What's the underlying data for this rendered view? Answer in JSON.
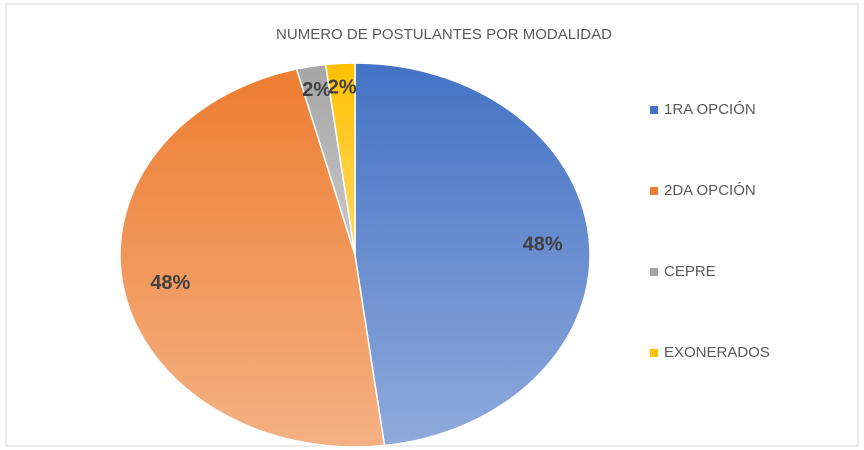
{
  "chart_data": {
    "type": "pie",
    "title": "NUMERO DE POSTULANTES POR MODALIDAD",
    "categories": [
      "1RA OPCIÓN",
      "2DA OPCIÓN",
      "CEPRE",
      "EXONERADOS"
    ],
    "values": [
      48,
      48,
      2,
      2
    ],
    "value_labels": [
      "48%",
      "48%",
      "2%",
      "2%"
    ],
    "colors": [
      "#4472c4",
      "#ed7d31",
      "#a5a5a5",
      "#ffc000"
    ],
    "legend": "right"
  }
}
